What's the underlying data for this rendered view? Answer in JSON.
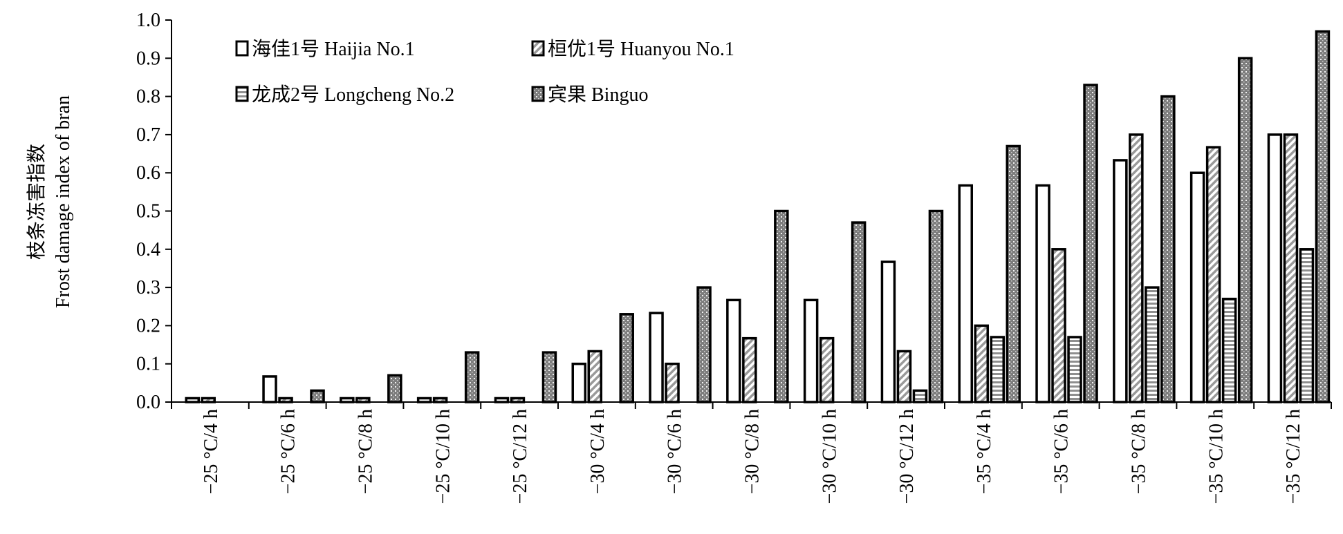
{
  "chart_data": {
    "type": "bar",
    "ylabel_cn": "枝条冻害指数",
    "ylabel_en": "Frost damage index of bran",
    "ylim": [
      0,
      1.0
    ],
    "yticks": [
      "0.0",
      "0.1",
      "0.2",
      "0.3",
      "0.4",
      "0.5",
      "0.6",
      "0.7",
      "0.8",
      "0.9",
      "1.0"
    ],
    "legend_position": "top-left",
    "categories": [
      "−25 °C/4 h",
      "−25 °C/6 h",
      "−25 °C/8 h",
      "−25 °C/10 h",
      "−25 °C/12 h",
      "−30 °C/4 h",
      "−30 °C/6 h",
      "−30 °C/8 h",
      "−30 °C/10 h",
      "−30 °C/12 h",
      "−35 °C/4 h",
      "−35 °C/6 h",
      "−35 °C/8 h",
      "−35 °C/10 h",
      "−35 °C/12 h"
    ],
    "series": [
      {
        "name": "海佳1号 Haijia No.1",
        "pattern": "white",
        "values": [
          0.01,
          0.067,
          0.01,
          0.01,
          0.01,
          0.1,
          0.233,
          0.267,
          0.267,
          0.367,
          0.567,
          0.567,
          0.633,
          0.6,
          0.7
        ]
      },
      {
        "name": "桓优1号 Huanyou No.1",
        "pattern": "diagonal",
        "values": [
          0.01,
          0.01,
          0.01,
          0.01,
          0.01,
          0.133,
          0.1,
          0.167,
          0.167,
          0.133,
          0.2,
          0.4,
          0.7,
          0.667,
          0.7
        ]
      },
      {
        "name": "龙成2号 Longcheng No.2",
        "pattern": "horizontal",
        "values": [
          0,
          0,
          0,
          0,
          0,
          0,
          0,
          0,
          0,
          0.03,
          0.17,
          0.17,
          0.3,
          0.27,
          0.4
        ]
      },
      {
        "name": "宾果 Binguo",
        "pattern": "dotted",
        "values": [
          0,
          0.03,
          0.07,
          0.13,
          0.13,
          0.23,
          0.3,
          0.5,
          0.47,
          0.5,
          0.67,
          0.83,
          0.8,
          0.9,
          0.97
        ]
      }
    ]
  }
}
